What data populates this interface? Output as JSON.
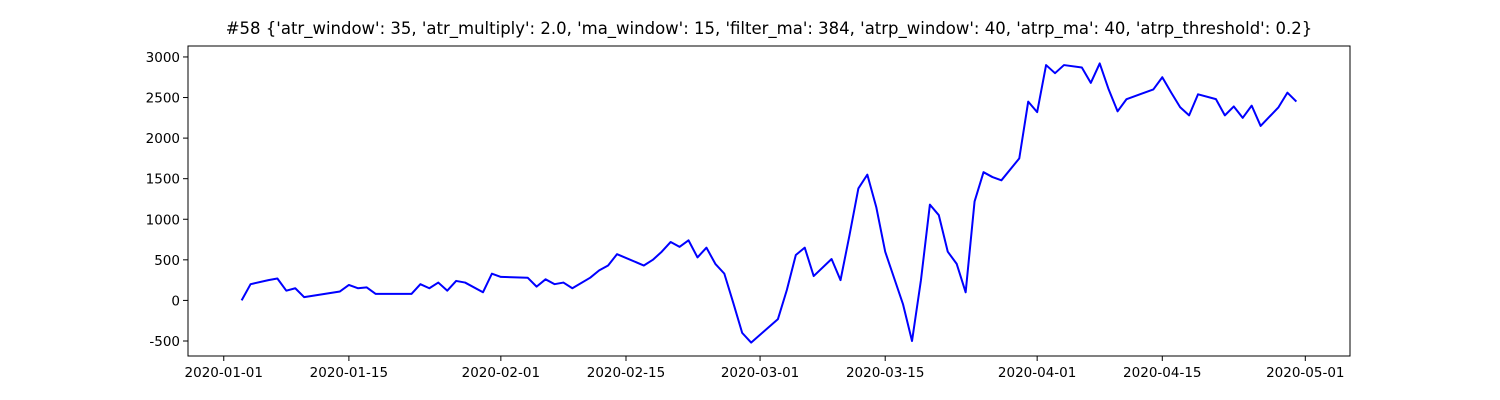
{
  "chart_data": {
    "type": "line",
    "title": "#58 {'atr_window': 35, 'atr_multiply': 2.0, 'ma_window': 15, 'filter_ma': 384, 'atrp_window': 40, 'atrp_ma': 40, 'atrp_threshold': 0.2}",
    "x": [
      "2020-01-03",
      "2020-01-04",
      "2020-01-06",
      "2020-01-07",
      "2020-01-08",
      "2020-01-09",
      "2020-01-10",
      "2020-01-14",
      "2020-01-15",
      "2020-01-16",
      "2020-01-17",
      "2020-01-18",
      "2020-01-22",
      "2020-01-23",
      "2020-01-24",
      "2020-01-25",
      "2020-01-26",
      "2020-01-27",
      "2020-01-28",
      "2020-01-30",
      "2020-01-31",
      "2020-02-01",
      "2020-02-04",
      "2020-02-05",
      "2020-02-06",
      "2020-02-07",
      "2020-02-08",
      "2020-02-09",
      "2020-02-11",
      "2020-02-12",
      "2020-02-13",
      "2020-02-14",
      "2020-02-17",
      "2020-02-18",
      "2020-02-19",
      "2020-02-20",
      "2020-02-21",
      "2020-02-22",
      "2020-02-23",
      "2020-02-24",
      "2020-02-25",
      "2020-02-26",
      "2020-02-27",
      "2020-02-28",
      "2020-02-29",
      "2020-03-03",
      "2020-03-04",
      "2020-03-05",
      "2020-03-06",
      "2020-03-07",
      "2020-03-09",
      "2020-03-10",
      "2020-03-11",
      "2020-03-12",
      "2020-03-13",
      "2020-03-14",
      "2020-03-15",
      "2020-03-17",
      "2020-03-18",
      "2020-03-19",
      "2020-03-20",
      "2020-03-21",
      "2020-03-22",
      "2020-03-23",
      "2020-03-24",
      "2020-03-25",
      "2020-03-26",
      "2020-03-27",
      "2020-03-28",
      "2020-03-30",
      "2020-03-31",
      "2020-04-01",
      "2020-04-02",
      "2020-04-03",
      "2020-04-04",
      "2020-04-06",
      "2020-04-07",
      "2020-04-08",
      "2020-04-09",
      "2020-04-10",
      "2020-04-11",
      "2020-04-14",
      "2020-04-15",
      "2020-04-16",
      "2020-04-17",
      "2020-04-18",
      "2020-04-19",
      "2020-04-21",
      "2020-04-22",
      "2020-04-23",
      "2020-04-24",
      "2020-04-25",
      "2020-04-26",
      "2020-04-28",
      "2020-04-29",
      "2020-04-30"
    ],
    "series": [
      {
        "color": "#0000ff",
        "values": [
          0,
          200,
          250,
          270,
          120,
          150,
          40,
          110,
          190,
          150,
          160,
          80,
          80,
          200,
          150,
          220,
          120,
          240,
          220,
          100,
          330,
          290,
          280,
          170,
          260,
          200,
          220,
          150,
          280,
          370,
          430,
          570,
          430,
          500,
          600,
          720,
          660,
          740,
          530,
          650,
          450,
          330,
          -30,
          -400,
          -520,
          -230,
          130,
          560,
          650,
          300,
          510,
          250,
          800,
          1380,
          1550,
          1150,
          600,
          -50,
          -500,
          250,
          1180,
          1050,
          600,
          450,
          100,
          1220,
          1580,
          1520,
          1480,
          1750,
          2450,
          2320,
          2900,
          2800,
          2900,
          2870,
          2680,
          2920,
          2600,
          2330,
          2480,
          2600,
          2750,
          2560,
          2380,
          2280,
          2540,
          2480,
          2280,
          2390,
          2250,
          2400,
          2150,
          2380,
          2560,
          2450
        ]
      }
    ],
    "xlim": [
      "2019-12-28",
      "2020-05-06"
    ],
    "xticks": [
      "2020-01-01",
      "2020-01-15",
      "2020-02-01",
      "2020-02-15",
      "2020-03-01",
      "2020-03-15",
      "2020-04-01",
      "2020-04-15",
      "2020-05-01"
    ],
    "ylim": [
      -685,
      3135
    ],
    "yticks": [
      -500,
      0,
      500,
      1000,
      1500,
      2000,
      2500,
      3000
    ],
    "grid": false
  }
}
